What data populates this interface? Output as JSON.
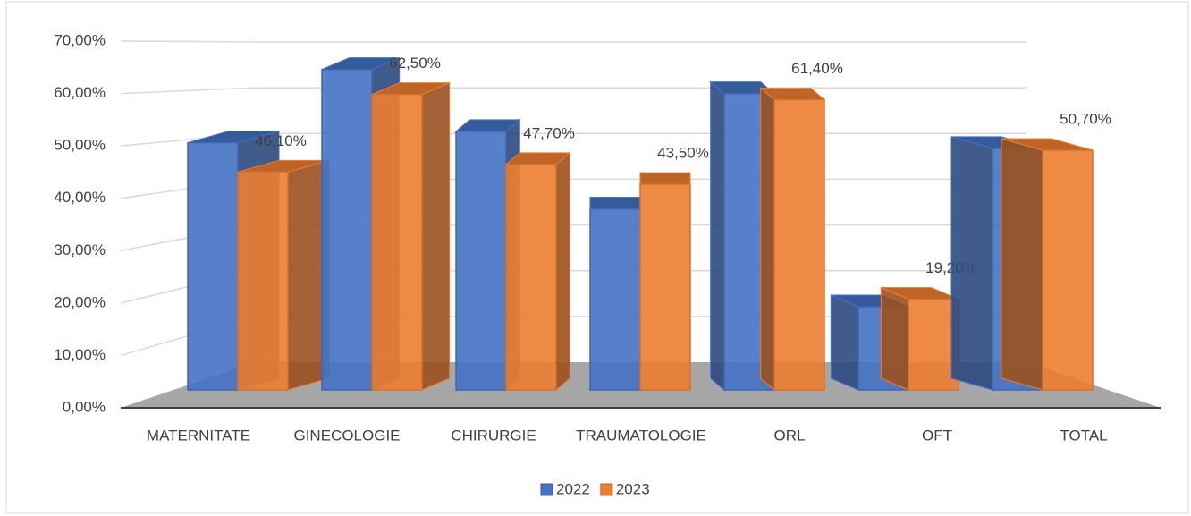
{
  "chart_data": {
    "type": "bar3d",
    "categories": [
      "MATERNITATE",
      "GINECOLOGIE",
      "CHIRURGIE",
      "TRAUMATOLOGIE",
      "ORL",
      "OFT",
      "TOTAL"
    ],
    "series": [
      {
        "name": "2022",
        "color": "#4472c4",
        "values": [
          52.3,
          67.8,
          54.7,
          38.3,
          62.7,
          17.6,
          51.1
        ]
      },
      {
        "name": "2023",
        "color": "#ed7d31",
        "values": [
          46.1,
          62.5,
          47.7,
          43.5,
          61.4,
          19.2,
          50.7
        ],
        "value_labels": [
          "46,10%",
          "62,50%",
          "47,70%",
          "43,50%",
          "61,40%",
          "19,20%",
          "50,70%"
        ]
      }
    ],
    "ylim": [
      0,
      70
    ],
    "yticks": [
      {
        "value": 0,
        "label": "0,00%"
      },
      {
        "value": 10,
        "label": "10,00%"
      },
      {
        "value": 20,
        "label": "20,00%"
      },
      {
        "value": 30,
        "label": "30,00%"
      },
      {
        "value": 40,
        "label": "40,00%"
      },
      {
        "value": 50,
        "label": "50,00%"
      },
      {
        "value": 60,
        "label": "60,00%"
      },
      {
        "value": 70,
        "label": "70,00%"
      }
    ],
    "grid": true,
    "legend": "bottom"
  }
}
